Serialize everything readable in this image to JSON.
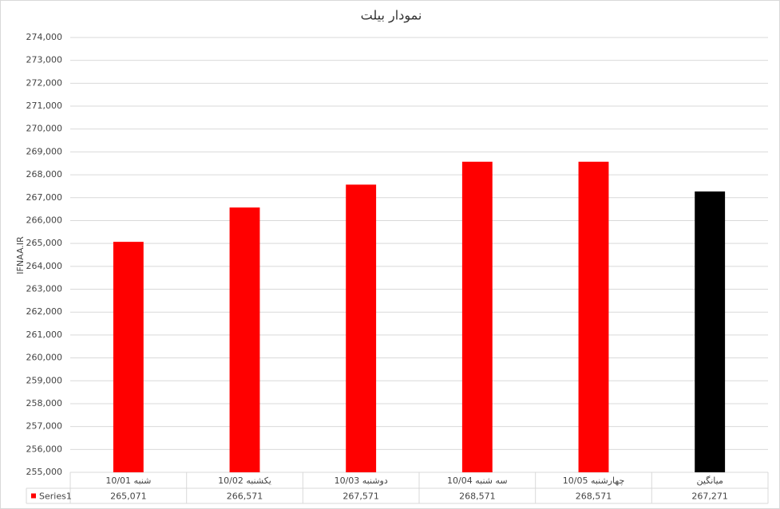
{
  "chart_data": {
    "type": "bar",
    "title": "نمودار بیلت",
    "ylabel": "IFNAA.IR",
    "categories": [
      "10/01 شنبه",
      "10/02 یکشنبه",
      "10/03 دوشنبه",
      "10/04 سه شنبه",
      "10/05 چهارشنبه",
      "میانگین"
    ],
    "series": [
      {
        "name": "Series1",
        "color": "#ff0000",
        "values": [
          265071,
          266571,
          267571,
          268571,
          268571,
          267271
        ],
        "value_labels": [
          "265,071",
          "266,571",
          "267,571",
          "268,571",
          "268,571",
          "267,271"
        ],
        "colors": [
          "#ff0000",
          "#ff0000",
          "#ff0000",
          "#ff0000",
          "#ff0000",
          "#000000"
        ]
      }
    ],
    "ylim": [
      255000,
      274000
    ],
    "yticks": [
      {
        "value": 255000,
        "label": "255,000"
      },
      {
        "value": 256000,
        "label": "256,000"
      },
      {
        "value": 257000,
        "label": "257,000"
      },
      {
        "value": 258000,
        "label": "258,000"
      },
      {
        "value": 259000,
        "label": "259,000"
      },
      {
        "value": 260000,
        "label": "260,000"
      },
      {
        "value": 261000,
        "label": "261,000"
      },
      {
        "value": 262000,
        "label": "262,000"
      },
      {
        "value": 263000,
        "label": "263,000"
      },
      {
        "value": 264000,
        "label": "264,000"
      },
      {
        "value": 265000,
        "label": "265,000"
      },
      {
        "value": 266000,
        "label": "266,000"
      },
      {
        "value": 267000,
        "label": "267,000"
      },
      {
        "value": 268000,
        "label": "268,000"
      },
      {
        "value": 269000,
        "label": "269,000"
      },
      {
        "value": 270000,
        "label": "270,000"
      },
      {
        "value": 271000,
        "label": "271,000"
      },
      {
        "value": 272000,
        "label": "272,000"
      },
      {
        "value": 273000,
        "label": "273,000"
      },
      {
        "value": 274000,
        "label": "274,000"
      }
    ],
    "grid": true
  }
}
